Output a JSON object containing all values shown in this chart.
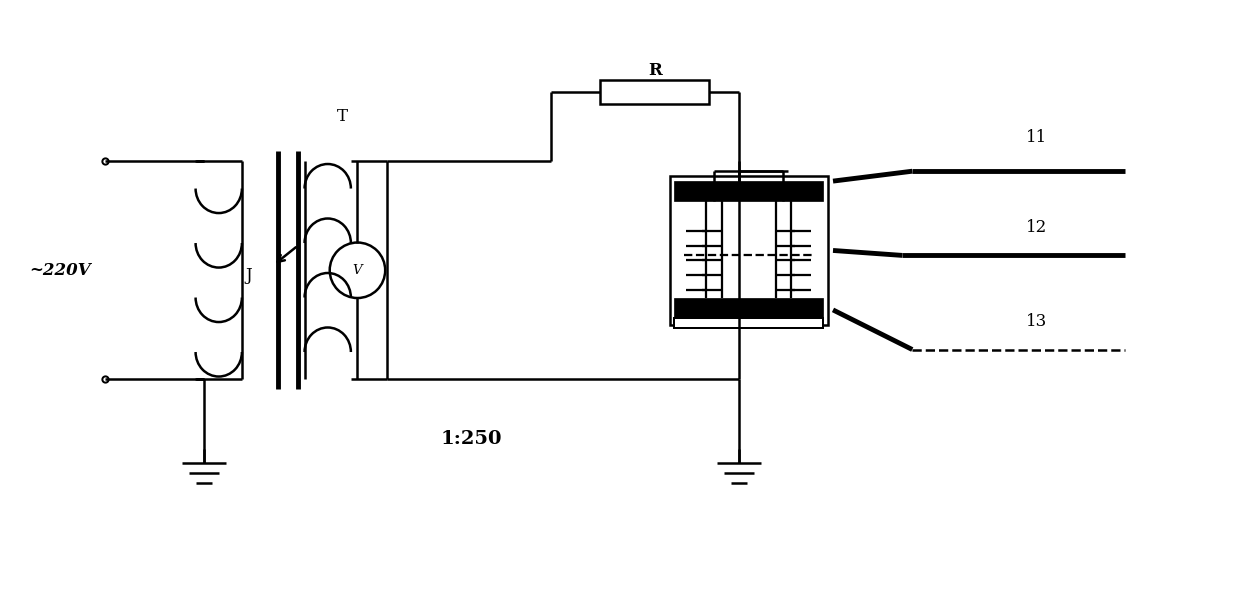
{
  "bg_color": "#ffffff",
  "line_color": "#000000",
  "lw": 1.8,
  "lw_thick": 3.5,
  "lw_xthick": 6.0,
  "labels": {
    "voltage": "~220V",
    "J": "J",
    "T": "T",
    "ratio": "1:250",
    "R": "R",
    "n11": "11",
    "n12": "12",
    "n13": "13",
    "V": "V"
  },
  "font_size": 12,
  "font_size_ratio": 14
}
